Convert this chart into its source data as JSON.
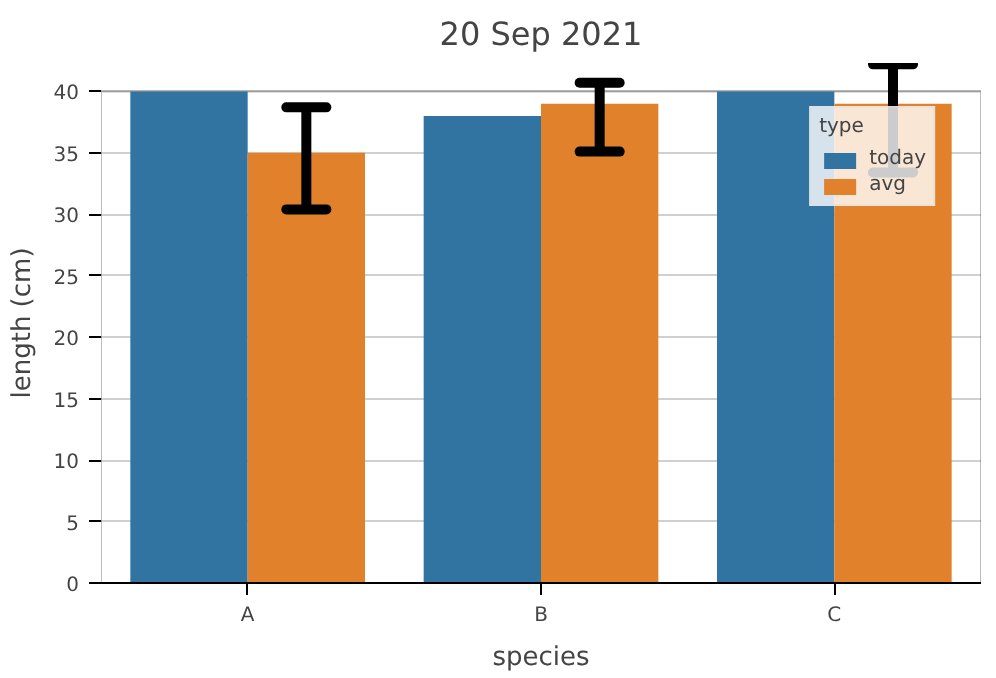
{
  "chart_data": {
    "type": "bar",
    "title": "20 Sep 2021",
    "xlabel": "species",
    "ylabel": "length (cm)",
    "legend_title": "type",
    "categories": [
      "A",
      "B",
      "C"
    ],
    "series": [
      {
        "name": "today",
        "color": "#3274a1",
        "values": [
          40,
          38,
          40
        ]
      },
      {
        "name": "avg",
        "color": "#e1812c",
        "values": [
          35,
          39,
          39
        ],
        "errors": [
          [
            30.4,
            38.7
          ],
          [
            35.1,
            40.7
          ],
          [
            33.4,
            42.2
          ]
        ]
      }
    ],
    "ylim": [
      0,
      40
    ],
    "yticks": [
      0,
      5,
      10,
      15,
      20,
      25,
      30,
      35,
      40
    ],
    "grid": "y",
    "legend": "top right"
  }
}
